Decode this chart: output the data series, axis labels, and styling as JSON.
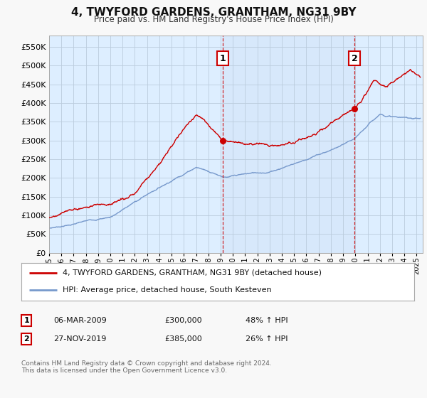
{
  "title": "4, TWYFORD GARDENS, GRANTHAM, NG31 9BY",
  "subtitle": "Price paid vs. HM Land Registry's House Price Index (HPI)",
  "ylabel_ticks": [
    "£0",
    "£50K",
    "£100K",
    "£150K",
    "£200K",
    "£250K",
    "£300K",
    "£350K",
    "£400K",
    "£450K",
    "£500K",
    "£550K"
  ],
  "ytick_values": [
    0,
    50000,
    100000,
    150000,
    200000,
    250000,
    300000,
    350000,
    400000,
    450000,
    500000,
    550000
  ],
  "ylim": [
    0,
    580000
  ],
  "xlim_start": 1995.0,
  "xlim_end": 2025.5,
  "red_line_color": "#cc0000",
  "blue_line_color": "#7799cc",
  "sale1_x": 2009.17,
  "sale1_y": 300000,
  "sale2_x": 2019.92,
  "sale2_y": 385000,
  "legend_line1": "4, TWYFORD GARDENS, GRANTHAM, NG31 9BY (detached house)",
  "legend_line2": "HPI: Average price, detached house, South Kesteven",
  "table_row1_num": "1",
  "table_row1_date": "06-MAR-2009",
  "table_row1_price": "£300,000",
  "table_row1_hpi": "48% ↑ HPI",
  "table_row2_num": "2",
  "table_row2_date": "27-NOV-2019",
  "table_row2_price": "£385,000",
  "table_row2_hpi": "26% ↑ HPI",
  "footer": "Contains HM Land Registry data © Crown copyright and database right 2024.\nThis data is licensed under the Open Government Licence v3.0.",
  "fig_bg_color": "#f8f8f8",
  "plot_bg_color": "#ddeeff",
  "grid_color": "#bbccdd"
}
